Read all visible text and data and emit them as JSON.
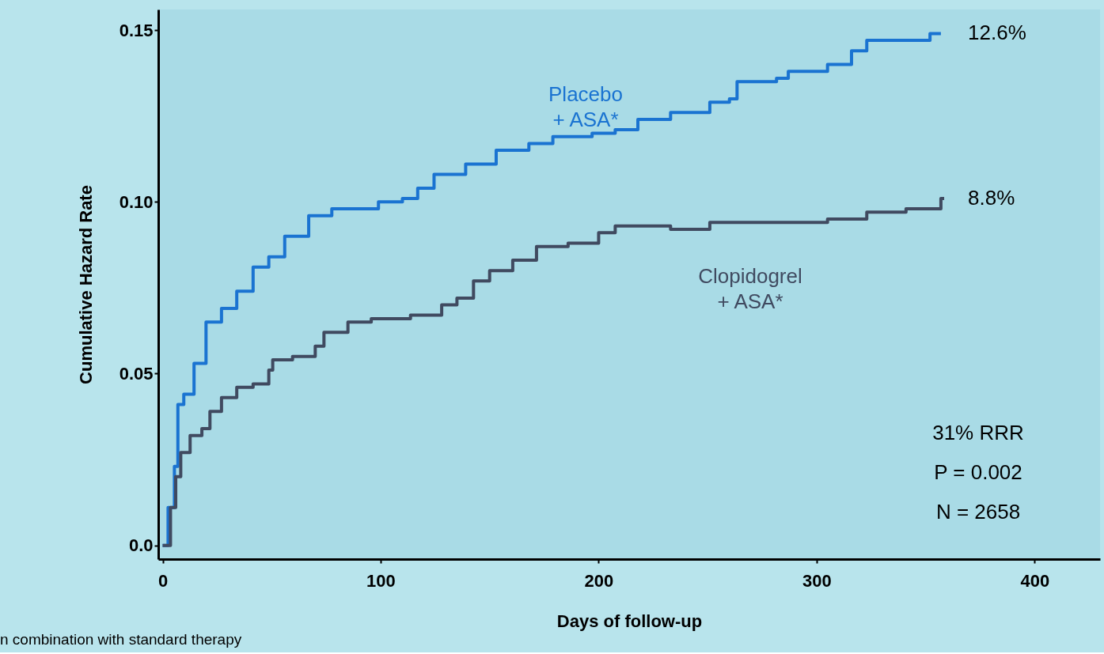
{
  "chart_data": {
    "type": "step",
    "xlabel": "Days of follow-up",
    "ylabel": "Cumulative Hazard Rate",
    "xlim": [
      -2,
      430
    ],
    "ylim": [
      -0.004,
      0.156
    ],
    "xticks": [
      0,
      100,
      200,
      300,
      400
    ],
    "yticks": [
      {
        "value": 0,
        "label": "0.0"
      },
      {
        "value": 0.05,
        "label": "0.05"
      },
      {
        "value": 0.1,
        "label": "0.10"
      },
      {
        "value": 0.15,
        "label": "0.15"
      }
    ],
    "grid": false,
    "line_style": "solid",
    "marker": "none",
    "series": [
      {
        "name": "Placebo\n+ ASA*",
        "color": "#1a73d1",
        "x": [
          0,
          2.5,
          5.4,
          7,
          9.7,
          14.4,
          19.9,
          27,
          34,
          41.5,
          48.7,
          56,
          67,
          77.6,
          88,
          99,
          110,
          117,
          124.5,
          139,
          153,
          168,
          179,
          197,
          207.6,
          218,
          233,
          251,
          260,
          263.5,
          281.6,
          287,
          305,
          316,
          323,
          345,
          352,
          357
        ],
        "values": [
          0,
          0.011,
          0.023,
          0.041,
          0.044,
          0.053,
          0.065,
          0.069,
          0.074,
          0.081,
          0.084,
          0.09,
          0.096,
          0.098,
          0.098,
          0.1,
          0.101,
          0.104,
          0.108,
          0.111,
          0.115,
          0.117,
          0.119,
          0.12,
          0.121,
          0.124,
          0.126,
          0.129,
          0.13,
          0.135,
          0.136,
          0.138,
          0.14,
          0.144,
          0.147,
          0.147,
          0.149,
          0.149
        ]
      },
      {
        "name": "Clopidogrel\n+ ASA*",
        "color": "#404a60",
        "x": [
          0,
          3.6,
          6,
          8.3,
          12.6,
          18,
          21.7,
          27,
          34,
          41.5,
          48.7,
          50.5,
          59.6,
          70,
          74,
          85,
          95.7,
          113.7,
          128,
          135,
          142.6,
          150,
          160.6,
          171.5,
          186,
          200,
          207.6,
          233,
          251,
          269,
          305,
          323,
          341,
          357,
          358.5
        ],
        "values": [
          0,
          0.011,
          0.02,
          0.027,
          0.032,
          0.034,
          0.039,
          0.043,
          0.046,
          0.047,
          0.051,
          0.054,
          0.055,
          0.058,
          0.062,
          0.065,
          0.066,
          0.067,
          0.07,
          0.072,
          0.077,
          0.08,
          0.083,
          0.087,
          0.088,
          0.091,
          0.093,
          0.092,
          0.094,
          0.094,
          0.095,
          0.097,
          0.098,
          0.101,
          0.101
        ]
      }
    ],
    "annotations": [
      {
        "text": "12.6%",
        "x": 358.5,
        "y": 0.149
      },
      {
        "text": "8.8%",
        "x": 358.5,
        "y": 0.101
      },
      "31% RRR",
      "P = 0.002",
      "N = 2658",
      "n combination with standard therapy"
    ]
  }
}
